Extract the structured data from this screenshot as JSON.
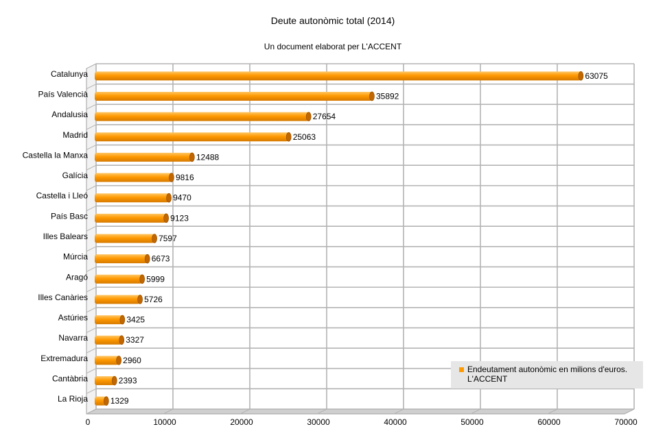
{
  "chart_data": {
    "type": "bar",
    "orientation": "horizontal",
    "title": "Deute autonòmic total (2014)",
    "subtitle": "Un document elaborat per L'ACCENT",
    "categories": [
      "Catalunya",
      "País Valencià",
      "Andalusia",
      "Madrid",
      "Castella la Manxa",
      "Galícia",
      "Castella i Lleó",
      "País Basc",
      "Illes Balears",
      "Múrcia",
      "Aragó",
      "Illes Canàries",
      "Astúries",
      "Navarra",
      "Extremadura",
      "Cantàbria",
      "La Rioja"
    ],
    "series": [
      {
        "name": "Endeutament autonòmic en milions d'euros. L'ACCENT",
        "values": [
          63075,
          35892,
          27654,
          25063,
          12488,
          9816,
          9470,
          9123,
          7597,
          6673,
          5999,
          5726,
          3425,
          3327,
          2960,
          2393,
          1329
        ],
        "color": "#ff9900"
      }
    ],
    "xlim": [
      0,
      70000
    ],
    "xticks": [
      0,
      10000,
      20000,
      30000,
      40000,
      50000,
      60000,
      70000
    ],
    "grid": true,
    "legend_position": "bottom-right",
    "legend_lines": [
      "Endeutament autonòmic en milions d'euros.",
      "L'ACCENT"
    ],
    "data_labels": true
  },
  "colors": {
    "bar": "#ff9900",
    "bar_dark": "#c26600",
    "grid": "#b3b3b3",
    "legend_bg": "#e6e6e6"
  }
}
